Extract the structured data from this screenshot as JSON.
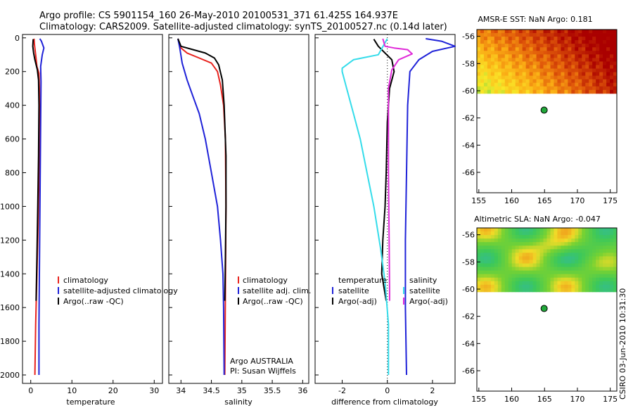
{
  "header": {
    "line1": "Argo profile: CS 5901154_160 26-May-2010 20100531_371 61.425S 164.937E",
    "line2": "Climatology: CARS2009. Satellite-adjusted climatology: synTS_20100527.nc (0.14d later)"
  },
  "side_label": "CSIRO 03-Jun-2010 10:31:30",
  "colors": {
    "climatology": "#e8231e",
    "satellite": "#1f22d8",
    "argo": "#000000",
    "temp_diff": "#34dcea",
    "sal_diff": "#e02ad8"
  },
  "chart_data": [
    {
      "id": "temperature",
      "type": "line",
      "xlabel": "temperature",
      "xlim": [
        -2,
        32
      ],
      "ylim": [
        2050,
        -20
      ],
      "xticks": [
        0,
        10,
        20,
        30
      ],
      "yticks": [
        0,
        200,
        400,
        600,
        800,
        1000,
        1200,
        1400,
        1600,
        1800,
        2000
      ],
      "legend_placement": "lower-right",
      "series": [
        {
          "name": "climatology",
          "color": "#e8231e",
          "points": [
            [
              0.8,
              5
            ],
            [
              0.9,
              40
            ],
            [
              1.2,
              100
            ],
            [
              1.5,
              170
            ],
            [
              2.0,
              210
            ],
            [
              2.1,
              300
            ],
            [
              2.1,
              500
            ],
            [
              2.0,
              800
            ],
            [
              1.8,
              1100
            ],
            [
              1.5,
              1400
            ],
            [
              1.2,
              1700
            ],
            [
              1.0,
              2000
            ]
          ]
        },
        {
          "name": "satellite-adjusted climatology",
          "color": "#1f22d8",
          "points": [
            [
              2.2,
              5
            ],
            [
              2.6,
              20
            ],
            [
              3.2,
              60
            ],
            [
              2.8,
              100
            ],
            [
              2.4,
              170
            ],
            [
              2.5,
              260
            ],
            [
              2.4,
              500
            ],
            [
              2.3,
              800
            ],
            [
              2.2,
              1100
            ],
            [
              2.1,
              1400
            ],
            [
              2.0,
              1700
            ],
            [
              2.0,
              2000
            ]
          ]
        },
        {
          "name": "Argo(..raw -QC)",
          "color": "#000000",
          "points": [
            [
              0.6,
              8
            ],
            [
              0.5,
              50
            ],
            [
              0.7,
              90
            ],
            [
              1.0,
              130
            ],
            [
              1.6,
              190
            ],
            [
              1.9,
              250
            ],
            [
              2.0,
              400
            ],
            [
              1.9,
              700
            ],
            [
              1.7,
              1000
            ],
            [
              1.5,
              1300
            ],
            [
              1.3,
              1560
            ]
          ]
        }
      ]
    },
    {
      "id": "salinity",
      "type": "line",
      "xlabel": "salinity",
      "xlim": [
        33.8,
        36.1
      ],
      "ylim": [
        2050,
        -20
      ],
      "xticks": [
        34,
        34.5,
        35,
        35.5,
        36
      ],
      "yticks": [
        0,
        200,
        400,
        600,
        800,
        1000,
        1200,
        1400,
        1600,
        1800,
        2000
      ],
      "legend_placement": "lower-right",
      "annotations": [
        "Argo AUSTRALIA",
        "PI: Susan Wijffels"
      ],
      "series": [
        {
          "name": "climatology",
          "color": "#e8231e",
          "points": [
            [
              33.95,
              5
            ],
            [
              34.0,
              60
            ],
            [
              34.1,
              90
            ],
            [
              34.3,
              120
            ],
            [
              34.5,
              150
            ],
            [
              34.6,
              200
            ],
            [
              34.65,
              280
            ],
            [
              34.7,
              400
            ],
            [
              34.73,
              600
            ],
            [
              34.74,
              1000
            ],
            [
              34.73,
              1500
            ],
            [
              34.72,
              2000
            ]
          ]
        },
        {
          "name": "satellite adj. clim.",
          "color": "#1f22d8",
          "points": [
            [
              33.95,
              5
            ],
            [
              33.98,
              60
            ],
            [
              34.02,
              150
            ],
            [
              34.1,
              250
            ],
            [
              34.2,
              350
            ],
            [
              34.3,
              450
            ],
            [
              34.4,
              600
            ],
            [
              34.5,
              800
            ],
            [
              34.6,
              1000
            ],
            [
              34.65,
              1200
            ],
            [
              34.69,
              1400
            ],
            [
              34.7,
              1600
            ],
            [
              34.71,
              2000
            ]
          ]
        },
        {
          "name": "Argo(..raw -QC)",
          "color": "#000000",
          "points": [
            [
              33.95,
              5
            ],
            [
              34.0,
              50
            ],
            [
              34.2,
              70
            ],
            [
              34.4,
              90
            ],
            [
              34.55,
              120
            ],
            [
              34.62,
              160
            ],
            [
              34.68,
              250
            ],
            [
              34.71,
              400
            ],
            [
              34.74,
              700
            ],
            [
              34.74,
              1000
            ],
            [
              34.73,
              1300
            ],
            [
              34.72,
              1560
            ]
          ]
        }
      ]
    },
    {
      "id": "difference",
      "type": "line",
      "xlabel": "difference from climatology",
      "xlim": [
        -3.2,
        3.0
      ],
      "ylim": [
        2050,
        -20
      ],
      "xticks": [
        -2,
        0,
        2
      ],
      "yticks": [
        0,
        200,
        400,
        600,
        800,
        1000,
        1200,
        1400,
        1600,
        1800,
        2000
      ],
      "zero_line": "dotted",
      "legend_headers": [
        "temperature",
        "salinity"
      ],
      "legend_placement": "lower-center",
      "series": [
        {
          "name": "satellite",
          "group": "temperature",
          "color": "#1f22d8",
          "points": [
            [
              1.7,
              5
            ],
            [
              2.4,
              20
            ],
            [
              3.0,
              50
            ],
            [
              2.0,
              80
            ],
            [
              1.4,
              130
            ],
            [
              1.0,
              200
            ],
            [
              0.9,
              400
            ],
            [
              0.85,
              800
            ],
            [
              0.8,
              1200
            ],
            [
              0.8,
              1600
            ],
            [
              0.85,
              2000
            ]
          ]
        },
        {
          "name": "Argo(-adj)",
          "group": "temperature",
          "color": "#000000",
          "points": [
            [
              -0.6,
              8
            ],
            [
              -0.4,
              50
            ],
            [
              -0.1,
              90
            ],
            [
              0.2,
              130
            ],
            [
              0.3,
              200
            ],
            [
              0.1,
              300
            ],
            [
              0,
              500
            ],
            [
              -0.05,
              800
            ],
            [
              -0.1,
              1000
            ],
            [
              -0.2,
              1200
            ],
            [
              -0.25,
              1400
            ],
            [
              -0.05,
              1560
            ]
          ]
        },
        {
          "name": "satellite",
          "group": "salinity",
          "color": "#34dcea",
          "points": [
            [
              0,
              5
            ],
            [
              -0.4,
              100
            ],
            [
              -1.5,
              130
            ],
            [
              -2.0,
              180
            ],
            [
              -2.0,
              200
            ],
            [
              -1.8,
              300
            ],
            [
              -1.5,
              450
            ],
            [
              -1.2,
              600
            ],
            [
              -0.9,
              800
            ],
            [
              -0.6,
              1000
            ],
            [
              -0.3,
              1250
            ],
            [
              -0.1,
              1450
            ],
            [
              0.05,
              1700
            ],
            [
              0.05,
              2000
            ]
          ]
        },
        {
          "name": "Argo(-adj)",
          "group": "salinity",
          "color": "#e02ad8",
          "points": [
            [
              -0.2,
              5
            ],
            [
              -0.1,
              50
            ],
            [
              0.3,
              60
            ],
            [
              0.9,
              70
            ],
            [
              1.1,
              95
            ],
            [
              0.5,
              130
            ],
            [
              0.2,
              190
            ],
            [
              0.05,
              300
            ],
            [
              0.05,
              800
            ],
            [
              0.08,
              1200
            ],
            [
              0.1,
              1500
            ],
            [
              0.1,
              1560
            ]
          ]
        }
      ]
    },
    {
      "id": "sst-map",
      "type": "heatmap",
      "title": "AMSR-E SST: NaN Argo: 0.181",
      "xlim": [
        154.7,
        176
      ],
      "ylim": [
        -67.5,
        -55.5
      ],
      "xticks": [
        155,
        160,
        165,
        170,
        175
      ],
      "yticks": [
        -56,
        -58,
        -60,
        -62,
        -64,
        -66
      ],
      "data_extent_lat": [
        -60.2,
        -55.5
      ],
      "marker": {
        "lon": 164.937,
        "lat": -61.425,
        "color": "#22a83a"
      }
    },
    {
      "id": "sla-map",
      "type": "heatmap",
      "title": "Altimetric SLA: NaN Argo: -0.047",
      "xlim": [
        154.7,
        176
      ],
      "ylim": [
        -67.5,
        -55.5
      ],
      "xticks": [
        155,
        160,
        165,
        170,
        175
      ],
      "yticks": [
        -56,
        -58,
        -60,
        -62,
        -64,
        -66
      ],
      "data_extent_lat": [
        -60.2,
        -55.5
      ],
      "marker": {
        "lon": 164.937,
        "lat": -61.425,
        "color": "#22a83a"
      }
    }
  ]
}
